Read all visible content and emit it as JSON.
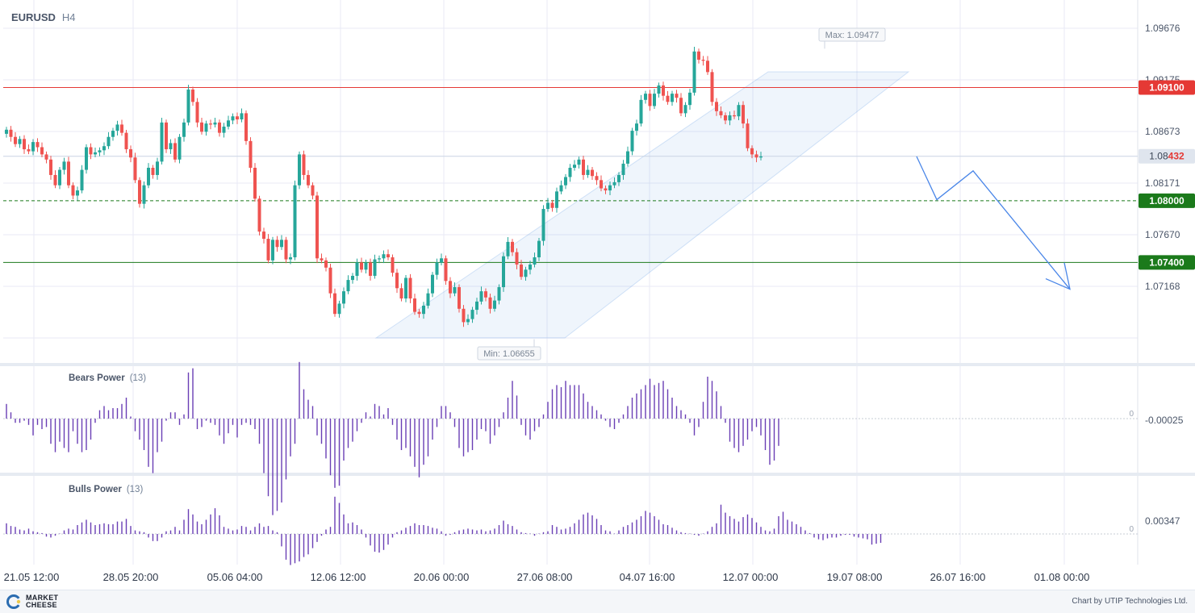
{
  "header": {
    "symbol": "EURUSD",
    "timeframe": "H4"
  },
  "chart_data": [
    {
      "type": "candlestick",
      "title": "EURUSD H4",
      "x_tick_labels": [
        "21.05 12:00",
        "28.05 20:00",
        "05.06 04:00",
        "12.06 12:00",
        "20.06 00:00",
        "27.06 08:00",
        "04.07 16:00",
        "12.07 00:00",
        "19.07 08:00",
        "26.07 16:00",
        "01.08 00:00"
      ],
      "y_tick_labels": [
        "1.09676",
        "1.09175",
        "1.08673",
        "1.08171",
        "1.07670",
        "1.07168"
      ],
      "ylim": [
        1.0638,
        1.0998
      ],
      "current_price": {
        "label_prefix": "1.08",
        "label_suffix": "432",
        "value": 1.08432
      },
      "levels": [
        {
          "label": "1.09100",
          "value": 1.091,
          "color": "#e53935",
          "style": "solid"
        },
        {
          "label": "1.08000",
          "value": 1.08,
          "color": "#1b7a1b",
          "style": "dashed"
        },
        {
          "label": "1.07400",
          "value": 1.074,
          "color": "#1b7a1b",
          "style": "solid"
        }
      ],
      "max_label": "Max: 1.09477",
      "min_label": "Min: 1.06655",
      "max_value": 1.09477,
      "min_value": 1.06655,
      "colors": {
        "up": "#26a69a",
        "down": "#ef5350",
        "grid": "#e8eaf6",
        "channel": "#1e6fd9",
        "forecast": "#4a86e8"
      },
      "close_series": [
        1.0869,
        1.0862,
        1.0855,
        1.086,
        1.085,
        1.0848,
        1.0857,
        1.0852,
        1.0845,
        1.084,
        1.0825,
        1.0815,
        1.083,
        1.0838,
        1.0815,
        1.0805,
        1.081,
        1.083,
        1.0852,
        1.0845,
        1.0847,
        1.0849,
        1.0853,
        1.0862,
        1.0868,
        1.0874,
        1.0866,
        1.085,
        1.0842,
        1.082,
        1.0797,
        1.0815,
        1.0832,
        1.0825,
        1.0838,
        1.0876,
        1.085,
        1.0856,
        1.084,
        1.0862,
        1.0876,
        1.0908,
        1.0896,
        1.0876,
        1.0867,
        1.0875,
        1.0874,
        1.0876,
        1.0866,
        1.0872,
        1.0878,
        1.0882,
        1.0879,
        1.0885,
        1.0858,
        1.0832,
        1.0802,
        1.077,
        1.0763,
        1.0742,
        1.0762,
        1.0755,
        1.0762,
        1.0743,
        1.0745,
        1.0815,
        1.0845,
        1.0825,
        1.0815,
        1.0805,
        1.0744,
        1.0742,
        1.0735,
        1.071,
        1.069,
        1.07,
        1.0712,
        1.0723,
        1.0727,
        1.074,
        1.0733,
        1.074,
        1.0727,
        1.0743,
        1.0744,
        1.0748,
        1.0745,
        1.073,
        1.0715,
        1.0705,
        1.0725,
        1.0705,
        1.0692,
        1.069,
        1.0698,
        1.071,
        1.0728,
        1.074,
        1.0744,
        1.0722,
        1.071,
        1.0716,
        1.0695,
        1.0682,
        1.0685,
        1.0694,
        1.0702,
        1.0712,
        1.0706,
        1.0695,
        1.0703,
        1.0716,
        1.0746,
        1.076,
        1.075,
        1.0738,
        1.0726,
        1.0733,
        1.0738,
        1.0745,
        1.0761,
        1.0792,
        1.0798,
        1.0793,
        1.0809,
        1.0815,
        1.0823,
        1.0832,
        1.0835,
        1.084,
        1.0825,
        1.083,
        1.0824,
        1.082,
        1.0812,
        1.081,
        1.0815,
        1.0818,
        1.0825,
        1.0836,
        1.0848,
        1.0868,
        1.0875,
        1.0898,
        1.0904,
        1.0892,
        1.0904,
        1.0912,
        1.0902,
        1.0896,
        1.0904,
        1.09,
        1.0885,
        1.0893,
        1.0905,
        1.0945,
        1.0937,
        1.0936,
        1.0925,
        1.0896,
        1.0887,
        1.0883,
        1.0878,
        1.0883,
        1.0882,
        1.0893,
        1.0875,
        1.0851,
        1.0845,
        1.0842,
        1.0843
      ],
      "forecast_x": [
        "current",
        "+2 days",
        "+3.5 days",
        "+6 days"
      ],
      "forecast_y": [
        1.0843,
        1.0801,
        1.0829,
        1.0714
      ]
    },
    {
      "type": "bar",
      "title": "Bears Power",
      "param": "(13)",
      "zero_label": "0",
      "right_label": "-0.00025",
      "values": [
        0.0007,
        0.0003,
        -0.0002,
        -0.0002,
        -0.0001,
        -0.0003,
        -0.0008,
        -0.0003,
        -0.0005,
        -0.0004,
        -0.0012,
        -0.0016,
        -0.0011,
        -0.0014,
        -0.0016,
        -0.0006,
        -0.0012,
        -0.0016,
        -0.0015,
        -0.001,
        -0.0002,
        0.0004,
        0.0006,
        0.0004,
        0.0005,
        0.0005,
        0.0007,
        0.001,
        0.0001,
        -0.0006,
        -0.001,
        -0.0015,
        -0.0023,
        -0.0026,
        -0.0016,
        -0.0011,
        -0.0001,
        0.0003,
        0.0003,
        -0.0003,
        0.0002,
        0.0022,
        0.0024,
        -0.0005,
        -0.0004,
        -0.0001,
        -0.0002,
        -0.0003,
        -0.0008,
        -0.0012,
        -0.0007,
        -0.0003,
        -0.0009,
        -0.0003,
        -0.0002,
        -0.0003,
        -0.0005,
        -0.0012,
        -0.0026,
        -0.0037,
        -0.0046,
        -0.0044,
        -0.004,
        -0.0029,
        -0.0018,
        -0.0012,
        0.0027,
        0.0014,
        0.0009,
        0.0006,
        -0.0008,
        -0.0012,
        -0.0019,
        -0.0027,
        -0.0033,
        -0.0032,
        -0.002,
        -0.0014,
        -0.0011,
        -0.0006,
        -0.0002,
        0.0003,
        0.0001,
        0.0007,
        0.0006,
        0.0002,
        0.0005,
        -0.0003,
        -0.001,
        -0.0015,
        -0.0014,
        -0.0018,
        -0.0023,
        -0.0028,
        -0.0022,
        -0.0018,
        -0.001,
        -0.0004,
        0.0006,
        0.0006,
        0.0003,
        -0.0004,
        -0.0014,
        -0.0018,
        -0.0016,
        -0.0015,
        -0.001,
        -0.0005,
        -0.0006,
        -0.0012,
        -0.0008,
        -0.0004,
        0.0003,
        0.001,
        0.0018,
        0.0011,
        -0.0003,
        -0.0008,
        -0.001,
        -0.0006,
        -0.0004,
        0.0002,
        0.0008,
        0.0014,
        0.0016,
        0.0015,
        0.0018,
        0.0016,
        0.0016,
        0.0016,
        0.0012,
        0.0008,
        0.0006,
        0.0004,
        0.0002,
        -0.0001,
        -0.0004,
        -0.0005,
        -0.0002,
        0.0002,
        0.0006,
        0.001,
        0.0012,
        0.0014,
        0.0016,
        0.0019,
        0.0016,
        0.0017,
        0.0018,
        0.0014,
        0.001,
        0.0006,
        0.0004,
        0.0002,
        -0.0002,
        -0.0008,
        -0.0004,
        0.0008,
        0.002,
        0.0018,
        0.0013,
        0.0006,
        -0.0002,
        -0.0011,
        -0.0014,
        -0.0016,
        -0.0013,
        -0.001,
        -0.0006,
        -0.0004,
        -0.0008,
        -0.0015,
        -0.0022,
        -0.002,
        -0.0013
      ]
    },
    {
      "type": "bar",
      "title": "Bulls Power",
      "param": "(13)",
      "zero_label": "0",
      "right_label": "0.00347",
      "values": [
        0.0012,
        0.0009,
        0.0008,
        0.0005,
        0.0004,
        0.0006,
        0.0003,
        0.0002,
        0.0001,
        -0.0003,
        -0.0004,
        -0.0002,
        0.0,
        0.0004,
        0.0006,
        0.0005,
        0.001,
        0.0013,
        0.0016,
        0.0013,
        0.001,
        0.0011,
        0.0012,
        0.0011,
        0.0011,
        0.0014,
        0.0014,
        0.0017,
        0.0009,
        0.0004,
        0.0003,
        0.0002,
        -0.0004,
        -0.0008,
        -0.0008,
        -0.0004,
        0.0003,
        0.0004,
        0.0008,
        0.0004,
        0.0016,
        0.0028,
        0.0022,
        0.0014,
        0.0011,
        0.0016,
        0.0022,
        0.0029,
        0.0021,
        0.0008,
        0.0006,
        0.0004,
        0.0005,
        0.0009,
        0.0008,
        0.0004,
        0.0008,
        0.0012,
        0.0008,
        0.0009,
        0.0004,
        0.0002,
        -0.0014,
        -0.0029,
        -0.0035,
        -0.0033,
        -0.0031,
        -0.0026,
        -0.0023,
        -0.0016,
        -0.0009,
        -0.0002,
        0.0005,
        0.0008,
        0.0042,
        0.0035,
        0.0022,
        0.0012,
        0.0013,
        0.001,
        0.0005,
        -0.0004,
        -0.0013,
        -0.002,
        -0.0021,
        -0.0018,
        -0.0012,
        -0.0004,
        0.0002,
        0.0004,
        0.0007,
        0.0009,
        0.0012,
        0.001,
        0.001,
        0.0009,
        0.0007,
        0.0006,
        0.0003,
        -0.0002,
        -0.0001,
        0.0002,
        0.0004,
        0.0005,
        0.0006,
        0.0005,
        0.0004,
        0.0005,
        0.0003,
        0.0004,
        0.0006,
        0.001,
        0.0015,
        0.0011,
        0.0009,
        0.0005,
        0.0002,
        0.0001,
        0.0,
        -0.0002,
        0.0,
        0.0002,
        0.0003,
        0.001,
        0.0008,
        0.0005,
        0.0006,
        0.0008,
        0.0012,
        0.0016,
        0.0022,
        0.0024,
        0.0021,
        0.0017,
        0.001,
        0.0004,
        0.0003,
        0.0,
        0.0004,
        0.0008,
        0.001,
        0.0013,
        0.0016,
        0.002,
        0.0026,
        0.0024,
        0.002,
        0.0016,
        0.0011,
        0.001,
        0.0007,
        0.0004,
        0.0002,
        0.0001,
        0.0,
        -0.0001,
        -0.0002,
        0.0,
        0.0003,
        0.0008,
        0.0012,
        0.0033,
        0.0024,
        0.002,
        0.0017,
        0.0014,
        0.0019,
        0.0022,
        0.0018,
        0.0013,
        0.0008,
        0.0004,
        0.0003,
        0.0006,
        0.002,
        0.0025,
        0.0016,
        0.0014,
        0.0011,
        0.0008,
        0.0004,
        0.0001,
        -0.0004,
        -0.0006,
        -0.0007,
        -0.0005,
        -0.0004,
        -0.0004,
        -0.0002,
        -0.0001,
        -0.0001,
        -0.0003,
        -0.0004,
        -0.0005,
        -0.0006,
        -0.0012,
        -0.0011,
        -0.001
      ]
    }
  ],
  "footer": {
    "brand_line1": "MARKET",
    "brand_line2": "CHEESE",
    "credit": "Chart by UTIP Technologies Ltd."
  }
}
